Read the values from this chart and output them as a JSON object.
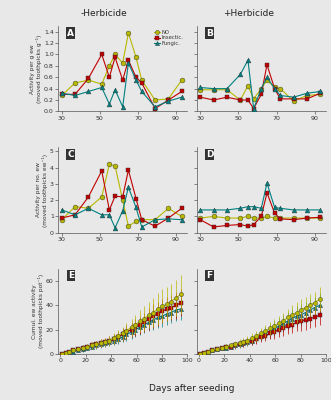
{
  "title_left": "-Herbicide",
  "title_right": "+Herbicide",
  "xlabel": "Days after seeding",
  "panels_AB_ylabel": "Activity per g ew\n(moved toothpicks g⁻¹)",
  "panels_AB_ylim": [
    0,
    1.5
  ],
  "panels_AB_yticks": [
    0.0,
    0.2,
    0.4,
    0.6,
    0.8,
    1.0,
    1.2,
    1.4
  ],
  "panels_AB_xlim": [
    28,
    96
  ],
  "panels_AB_xticks": [
    30,
    50,
    70,
    90
  ],
  "panels_CD_ylabel": "Activity per no. ew\n(moved toothpicks ew⁻¹)",
  "panels_CD_ylim": [
    0,
    5.25
  ],
  "panels_CD_yticks": [
    0.0,
    1.0,
    2.0,
    3.0,
    4.0,
    5.0
  ],
  "panels_CD_xlim": [
    28,
    96
  ],
  "panels_CD_xticks": [
    30,
    50,
    70,
    90
  ],
  "panels_EF_ylabel": "Cumul. ew activity\n(moved toothpicks pot⁻¹)",
  "panels_EF_ylim": [
    0,
    70
  ],
  "panels_EF_yticks": [
    0,
    20,
    40,
    60
  ],
  "panels_EF_xlim": [
    -2,
    100
  ],
  "panels_EF_xticks": [
    0,
    20,
    40,
    60,
    80,
    100
  ],
  "x_days_AB": [
    30,
    37,
    44,
    51,
    55,
    58,
    62,
    65,
    69,
    72,
    79,
    86,
    93
  ],
  "A_NO": [
    0.28,
    0.5,
    0.55,
    0.48,
    0.8,
    1.0,
    0.85,
    1.38,
    0.95,
    0.55,
    0.2,
    0.22,
    0.55
  ],
  "A_Insect": [
    0.3,
    0.3,
    0.58,
    1.0,
    0.6,
    0.95,
    0.55,
    0.9,
    0.6,
    0.5,
    0.05,
    0.2,
    0.35
  ],
  "A_Fungic": [
    0.32,
    0.28,
    0.35,
    0.42,
    0.13,
    0.38,
    0.08,
    0.85,
    0.55,
    0.35,
    0.08,
    0.18,
    0.25
  ],
  "B_NO": [
    0.38,
    0.38,
    0.38,
    0.2,
    0.45,
    0.22,
    0.4,
    0.55,
    0.42,
    0.4,
    0.18,
    0.28,
    0.3
  ],
  "B_Insect": [
    0.25,
    0.2,
    0.25,
    0.2,
    0.2,
    0.05,
    0.3,
    0.82,
    0.4,
    0.22,
    0.22,
    0.22,
    0.32
  ],
  "B_Fungic": [
    0.42,
    0.4,
    0.4,
    0.65,
    0.9,
    0.05,
    0.4,
    0.6,
    0.4,
    0.28,
    0.25,
    0.32,
    0.35
  ],
  "C_NO": [
    0.8,
    1.6,
    1.5,
    2.2,
    4.2,
    4.1,
    2.0,
    0.4,
    0.7,
    0.8,
    0.8,
    1.5,
    1.0
  ],
  "C_Insect": [
    0.9,
    1.1,
    2.2,
    3.8,
    1.4,
    2.25,
    2.2,
    3.85,
    2.1,
    0.8,
    0.4,
    0.9,
    1.5
  ],
  "C_Fungic": [
    1.4,
    1.1,
    1.5,
    1.1,
    1.1,
    0.3,
    1.35,
    2.8,
    1.55,
    0.35,
    0.8,
    0.85,
    0.8
  ],
  "D_NO": [
    0.9,
    1.0,
    0.9,
    0.9,
    1.0,
    0.9,
    0.9,
    1.0,
    0.9,
    0.9,
    0.9,
    0.9,
    0.9
  ],
  "D_Insect": [
    0.8,
    0.35,
    0.45,
    0.5,
    0.4,
    0.5,
    1.0,
    2.45,
    1.2,
    0.85,
    0.8,
    0.9,
    0.95
  ],
  "D_Fungic": [
    1.4,
    1.4,
    1.4,
    1.5,
    1.6,
    1.6,
    1.5,
    3.05,
    1.55,
    1.5,
    1.4,
    1.4,
    1.4
  ],
  "x_days_EF": [
    1,
    4,
    7,
    10,
    14,
    18,
    21,
    25,
    28,
    32,
    35,
    38,
    42,
    45,
    49,
    52,
    56,
    59,
    63,
    66,
    70,
    73,
    77,
    80,
    84,
    87,
    91,
    95
  ],
  "E_NO": [
    0,
    1,
    2,
    3,
    4,
    5,
    6,
    7,
    8,
    9,
    10,
    11,
    13,
    15,
    17,
    19,
    22,
    24,
    27,
    29,
    32,
    34,
    37,
    39,
    41,
    43,
    46,
    49
  ],
  "E_Insect": [
    0,
    1,
    2,
    3,
    4,
    5,
    6,
    7,
    8,
    9,
    10,
    11,
    12,
    14,
    16,
    18,
    20,
    22,
    24,
    26,
    29,
    31,
    33,
    35,
    37,
    38,
    40,
    42
  ],
  "E_Fungic": [
    0,
    0,
    1,
    2,
    3,
    4,
    5,
    6,
    7,
    8,
    9,
    10,
    11,
    12,
    14,
    16,
    18,
    20,
    22,
    24,
    26,
    28,
    30,
    31,
    33,
    34,
    36,
    37
  ],
  "E_NO_err": [
    0,
    0.5,
    1,
    1,
    1.5,
    2,
    2,
    2.5,
    3,
    3,
    3.5,
    4,
    4.5,
    5,
    5.5,
    6,
    7,
    8,
    9,
    10,
    11,
    12,
    13,
    14,
    14,
    14,
    15,
    16
  ],
  "E_Insect_err": [
    0,
    0.5,
    1,
    1,
    1.5,
    2,
    2,
    2.5,
    3,
    3,
    3.5,
    4,
    4,
    4.5,
    5,
    5.5,
    6,
    7,
    7.5,
    8,
    9,
    10,
    10,
    10,
    10,
    10,
    11,
    11
  ],
  "E_Fungic_err": [
    0,
    0.5,
    1,
    1,
    1.5,
    2,
    2,
    2,
    2.5,
    3,
    3,
    3.5,
    4,
    4,
    4.5,
    5,
    5.5,
    6,
    6.5,
    7,
    7.5,
    8,
    8.5,
    9,
    9,
    9,
    9,
    9
  ],
  "F_NO": [
    0,
    1,
    2,
    3,
    4,
    5,
    6,
    7,
    8,
    9,
    10,
    11,
    13,
    15,
    17,
    19,
    21,
    23,
    25,
    27,
    30,
    32,
    34,
    36,
    38,
    40,
    42,
    45
  ],
  "F_Insect": [
    0,
    1,
    2,
    3,
    4,
    5,
    6,
    6,
    7,
    8,
    9,
    10,
    11,
    12,
    14,
    15,
    17,
    18,
    20,
    21,
    23,
    24,
    26,
    27,
    28,
    29,
    30,
    32
  ],
  "F_Fungic": [
    0,
    1,
    2,
    3,
    4,
    5,
    5,
    6,
    7,
    8,
    9,
    10,
    11,
    13,
    15,
    17,
    19,
    21,
    23,
    25,
    27,
    29,
    31,
    32,
    34,
    36,
    38,
    40
  ],
  "F_NO_err": [
    0,
    0.5,
    1,
    1,
    1,
    1.5,
    2,
    2,
    2.5,
    3,
    3,
    3.5,
    4,
    4,
    4.5,
    5,
    5.5,
    5.5,
    6,
    6.5,
    7,
    8,
    9,
    9,
    9,
    9,
    9,
    10
  ],
  "F_Insect_err": [
    0,
    0.5,
    1,
    1,
    1,
    1.5,
    2,
    2,
    2,
    2.5,
    3,
    3,
    3.5,
    3.5,
    4,
    4.5,
    5,
    5.5,
    6,
    6,
    6.5,
    7,
    7.5,
    8,
    8,
    8,
    8,
    8
  ],
  "F_Fungic_err": [
    0,
    0.5,
    1,
    1,
    1,
    1.5,
    2,
    2,
    2.5,
    3,
    3,
    3.5,
    4,
    4,
    4.5,
    5,
    5.5,
    6,
    6.5,
    7,
    7.5,
    8,
    8.5,
    9,
    9,
    9,
    9,
    10
  ],
  "color_NO": "#b8b800",
  "color_Insect": "#c00000",
  "color_Fungic": "#008080",
  "bg_color": "#e8e8e8",
  "legend_labels": [
    "NO",
    "Insectic.",
    "Fungic."
  ],
  "panel_labels": [
    "A",
    "B",
    "C",
    "D",
    "E",
    "F"
  ]
}
